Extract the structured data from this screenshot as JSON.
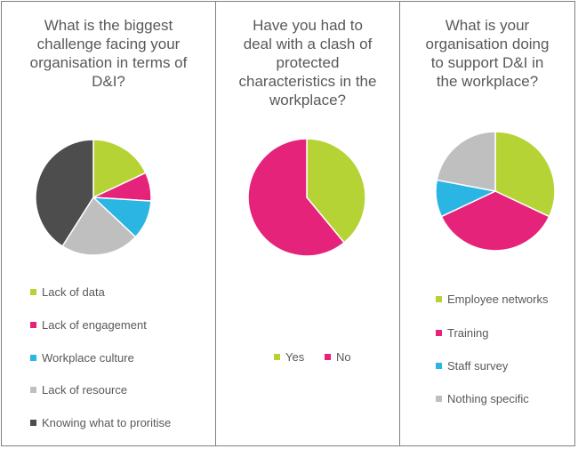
{
  "chart_data": [
    {
      "type": "pie",
      "title": "What is the biggest challenge facing your organisation in terms of D&I?",
      "title_lines": [
        "What is the biggest",
        "challenge facing your",
        "organisation in terms of",
        "D&I?"
      ],
      "categories": [
        "Lack of data",
        "Lack of engagement",
        "Workplace culture",
        "Lack of resource",
        "Knowing what to proritise"
      ],
      "values": [
        18,
        8,
        11,
        22,
        41
      ],
      "colors": [
        "#b5d334",
        "#e5237a",
        "#2bb5e2",
        "#bfbfbf",
        "#4d4d4d"
      ],
      "legend_position": "bottom"
    },
    {
      "type": "pie",
      "title": "Have you had to deal with a clash of protected characteristics in the workplace?",
      "title_lines": [
        "Have you had to",
        "deal with a clash of",
        "protected",
        "characteristics in the",
        "workplace?"
      ],
      "categories": [
        "Yes",
        "No"
      ],
      "values": [
        39,
        61
      ],
      "colors": [
        "#b5d334",
        "#e5237a"
      ],
      "legend_position": "bottom"
    },
    {
      "type": "pie",
      "title": "What is your organisation doing to support D&I in the workplace?",
      "title_lines": [
        "What is your",
        "organisation doing",
        "to support D&I in",
        "the workplace?"
      ],
      "categories": [
        "Employee networks",
        "Training",
        "Staff survey",
        "Nothing specific"
      ],
      "values": [
        32,
        36,
        10,
        22
      ],
      "colors": [
        "#b5d334",
        "#e5237a",
        "#2bb5e2",
        "#bfbfbf"
      ],
      "legend_position": "bottom"
    }
  ]
}
